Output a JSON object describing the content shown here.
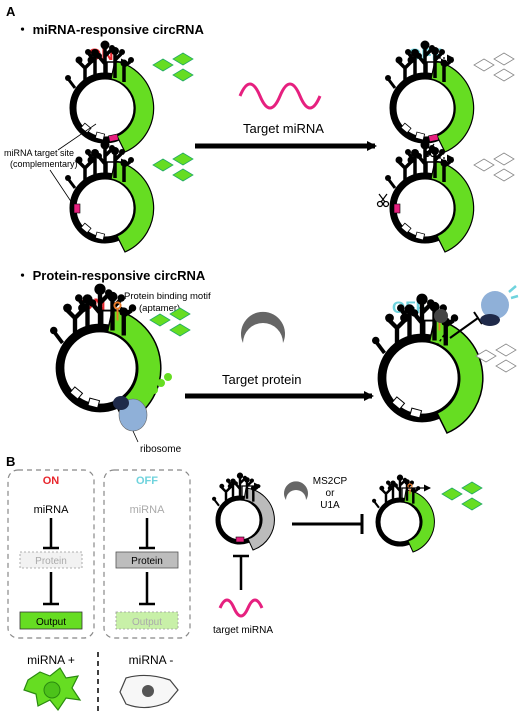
{
  "panel_a": {
    "letter": "A",
    "mirna_heading": "・ miRNA-responsive circRNA",
    "on_label": "ON",
    "off_label": "OFF",
    "target_site_label_1": "miRNA target site",
    "target_site_label_2": "(complementary)",
    "target_mirna_label": "Target miRNA",
    "protein_heading": "・ Protein-responsive circRNA",
    "protein_on_label": "ON",
    "protein_off_label": "OFF",
    "motif_label_1": "Protein binding motif",
    "motif_label_2": "(aptamer)",
    "target_protein_label": "Target protein",
    "ribosome_label": "ribosome"
  },
  "panel_b": {
    "letter": "B",
    "on_label": "ON",
    "off_label": "OFF",
    "mirna_on": "miRNA",
    "mirna_off": "miRNA",
    "protein_on": "Protein",
    "protein_off": "Protein",
    "output_on": "Output",
    "output_off": "Output",
    "ms2cp_1": "MS2CP",
    "ms2cp_2": "or",
    "ms2cp_3": "U1A",
    "target_mirna_label": "target miRNA",
    "mirna_plus": "miRNA +",
    "mirna_minus": "miRNA -"
  },
  "colors": {
    "on": "#e8262d",
    "off": "#6fd3dd",
    "green": "#66dd22",
    "magenta": "#e6207f",
    "grey": "#9a9a9a",
    "ribosome": "#8fb0d8"
  }
}
